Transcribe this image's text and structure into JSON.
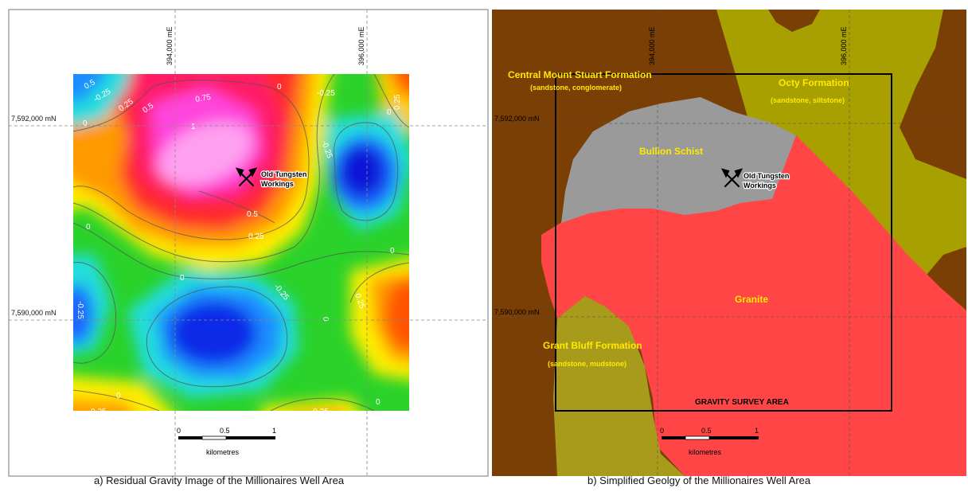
{
  "panel_a": {
    "caption": "a)  Residual Gravity Image of the Millionaires Well Area",
    "easting_labels": [
      "394,000 mE",
      "396,000 mE"
    ],
    "northing_labels": [
      "7,592,000 mN",
      "7,590,000 mN"
    ],
    "site_label_line1": "Old Tungsten",
    "site_label_line2": "Workings",
    "contour_labels": [
      "0.5",
      "-0.25",
      "0.25",
      "0.5",
      "0.75",
      "-0.25",
      "0.25",
      "1",
      "0",
      "0",
      "-0.25",
      "0",
      "0.5",
      "0.25",
      "0",
      "0",
      "-0.25",
      "0.25",
      "-0.25",
      "0",
      "0",
      "0",
      "-0.25",
      "0",
      "0.25"
    ],
    "scale": {
      "ticks": [
        "0",
        "0.5",
        "1"
      ],
      "unit": "kilometres"
    }
  },
  "panel_b": {
    "caption": "b)  Simplified Geolgy of the Millionaires Well Area",
    "easting_labels": [
      "394,000 mE",
      "396,000 mE"
    ],
    "northing_labels": [
      "7,592,000 mN",
      "7,590,000 mN"
    ],
    "units": {
      "central_mount_stuart": {
        "name": "Central Mount Stuart Formation",
        "desc": "(sandstone, conglomerate)",
        "color": "#7a3f05"
      },
      "octy": {
        "name": "Octy Formation",
        "desc": "(sandstone, siltstone)",
        "color": "#a8a000"
      },
      "bullion_schist": {
        "name": "Bullion Schist",
        "color": "#9a9a9a"
      },
      "granite": {
        "name": "Granite",
        "color": "#ff4545"
      },
      "grant_bluff": {
        "name": "Grant Bluff Formation",
        "desc": "(sandstone, mudstone)",
        "color": "#a89a1a"
      }
    },
    "site_label_line1": "Old Tungsten",
    "site_label_line2": "Workings",
    "survey_area_label": "GRAVITY SURVEY AREA",
    "scale": {
      "ticks": [
        "0",
        "0.5",
        "1"
      ],
      "unit": "kilometres"
    }
  }
}
